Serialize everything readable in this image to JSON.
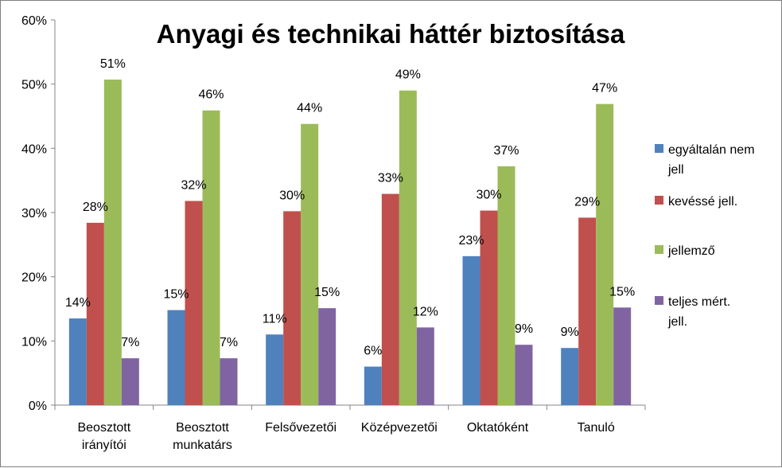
{
  "chart_data": {
    "type": "bar",
    "title": "Anyagi és technikai háttér biztosítása",
    "ylim": [
      0,
      60
    ],
    "yticks": [
      "0%",
      "10%",
      "20%",
      "30%",
      "40%",
      "50%",
      "60%"
    ],
    "categories": [
      [
        "Beosztott",
        "irányítói"
      ],
      [
        "Beosztott",
        "munkatárs"
      ],
      [
        "Felsővezetői"
      ],
      [
        "Középvezetői"
      ],
      [
        "Oktatóként"
      ],
      [
        "Tanuló"
      ]
    ],
    "series": [
      {
        "name": [
          "egyáltalán nem",
          "jell"
        ],
        "color": "#4f81bd",
        "values": [
          13.5,
          14.8,
          11.0,
          6.0,
          23.2,
          8.9
        ],
        "labels": [
          "14%",
          "15%",
          "11%",
          "6%",
          "23%",
          "9%"
        ]
      },
      {
        "name": [
          "kevéssé jell."
        ],
        "color": "#c0504d",
        "values": [
          28.4,
          31.8,
          30.2,
          32.9,
          30.3,
          29.2
        ],
        "labels": [
          "28%",
          "32%",
          "30%",
          "33%",
          "30%",
          "29%"
        ]
      },
      {
        "name": [
          " jellemző"
        ],
        "color": "#9bbb59",
        "values": [
          50.7,
          45.9,
          43.8,
          49.0,
          37.2,
          46.9
        ],
        "labels": [
          "51%",
          "46%",
          "44%",
          "49%",
          "37%",
          "47%"
        ]
      },
      {
        "name": [
          "teljes mért.",
          "jell."
        ],
        "color": "#8064a2",
        "values": [
          7.3,
          7.3,
          15.1,
          12.1,
          9.4,
          15.2
        ],
        "labels": [
          "7%",
          "7%",
          "15%",
          "12%",
          "9%",
          "15%"
        ]
      }
    ],
    "grid": false,
    "legend": "right"
  }
}
